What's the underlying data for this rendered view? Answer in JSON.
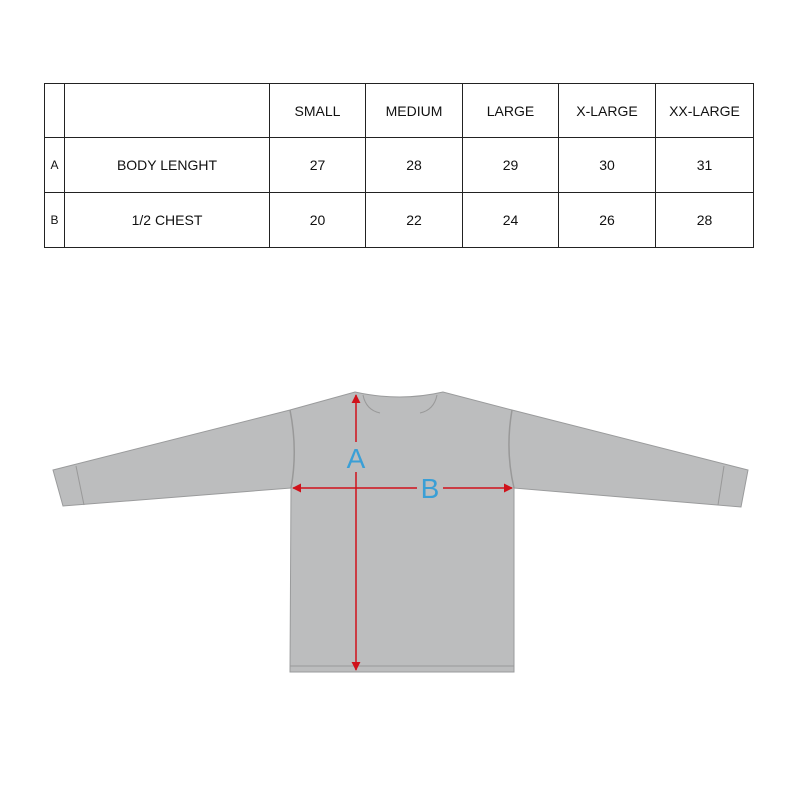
{
  "size_table": {
    "headers": [
      "",
      "",
      "SMALL",
      "MEDIUM",
      "LARGE",
      "X-LARGE",
      "XX-LARGE"
    ],
    "rows": [
      {
        "letter": "A",
        "label": "BODY LENGHT",
        "values": [
          "27",
          "28",
          "29",
          "30",
          "31"
        ]
      },
      {
        "letter": "B",
        "label": "1/2 CHEST",
        "values": [
          "20",
          "22",
          "24",
          "26",
          "28"
        ]
      }
    ]
  },
  "diagram": {
    "label_a": "A",
    "label_b": "B",
    "colors": {
      "shirt": "#bcbdbe",
      "arrow": "#d0121b",
      "label": "#3a9fd6"
    }
  }
}
